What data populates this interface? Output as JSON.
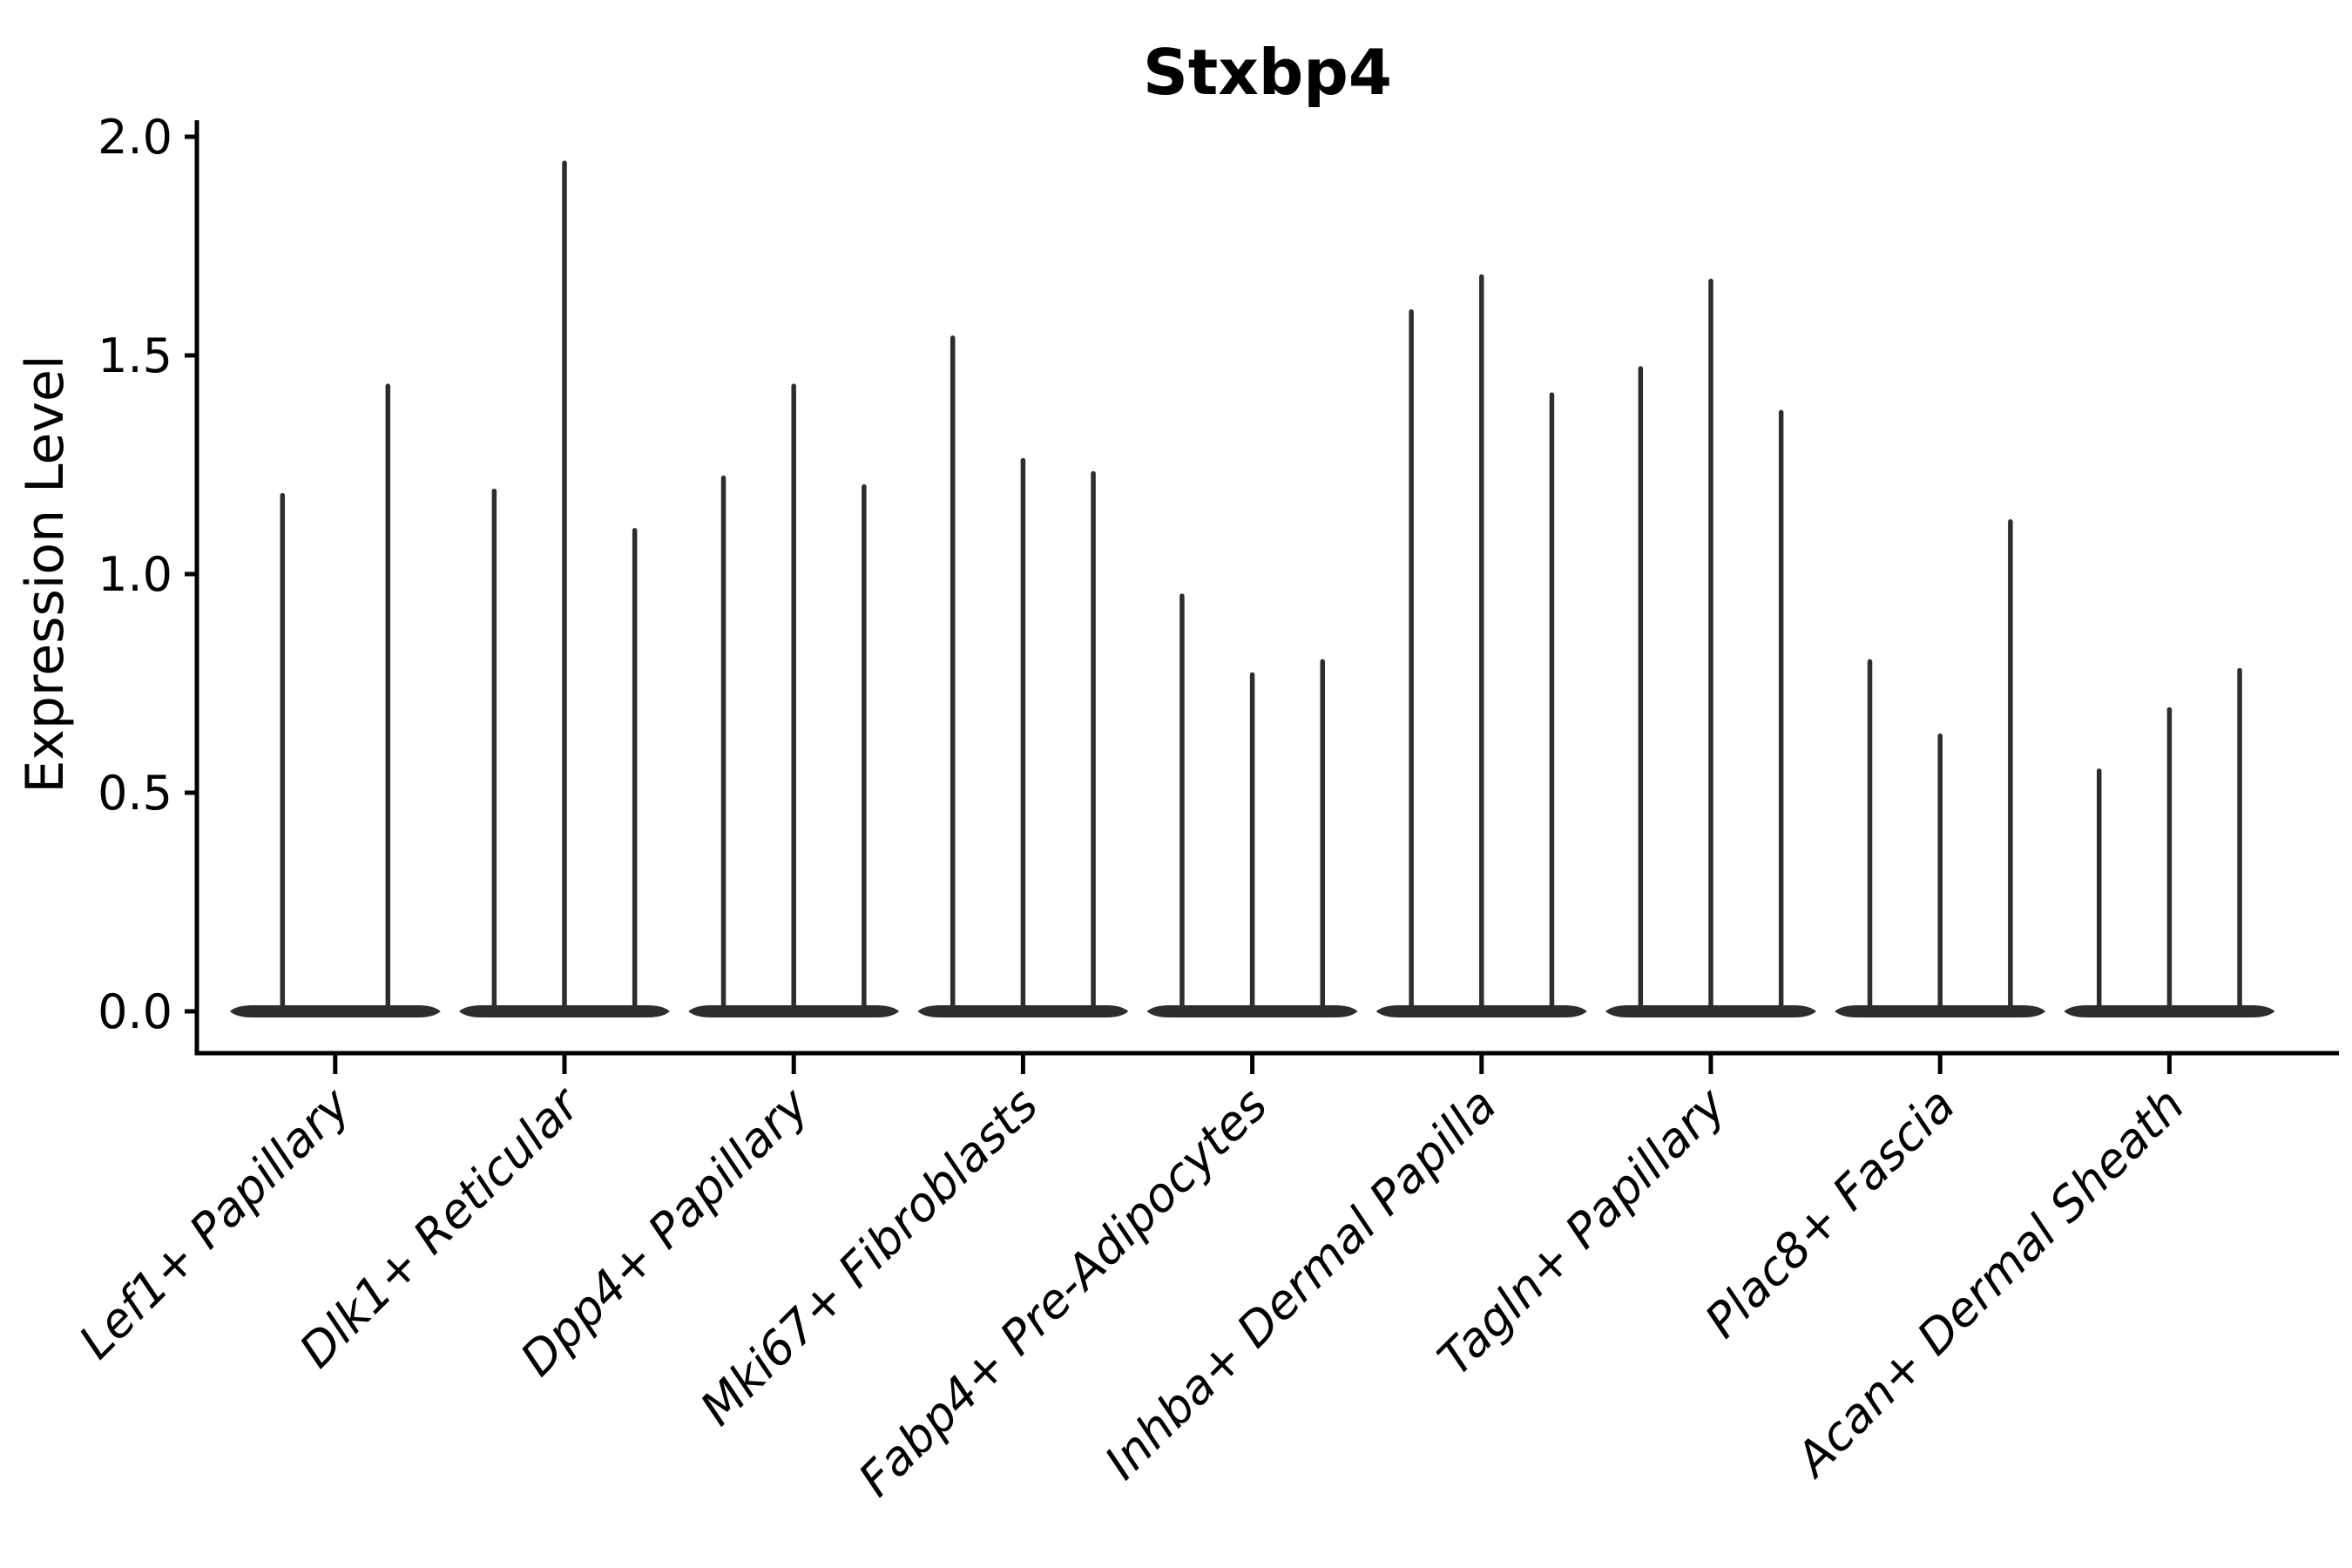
{
  "title": "Stxbp4",
  "y_axis": {
    "label": "Expression Level",
    "tick_labels": [
      "0.0",
      "0.5",
      "1.0",
      "1.5",
      "2.0"
    ],
    "tick_values": [
      0.0,
      0.5,
      1.0,
      1.5,
      2.0
    ],
    "range": [
      0.0,
      2.0
    ]
  },
  "x_axis": {
    "categories": [
      "Lef1+ Papillary",
      "Dlk1+ Reticular",
      "Dpp4+ Papillary",
      "Mki67+ Fibroblasts",
      "Fabp4+ Pre-Adipocytes",
      "Inhba+ Dermal Papilla",
      "Tagln+ Papillary",
      "Plac8+ Fascia",
      "Acan+ Dermal Sheath"
    ],
    "label_rotation_degrees": 45
  },
  "colors": {
    "violin": "#2d2d2d",
    "axis": "#000000",
    "background": "#ffffff"
  },
  "chart_data": {
    "type": "violin",
    "title": "Stxbp4",
    "xlabel": "",
    "ylabel": "Expression Level",
    "ylim": [
      0.0,
      2.0
    ],
    "yticks": [
      0.0,
      0.5,
      1.0,
      1.5,
      2.0
    ],
    "grid": false,
    "legend": null,
    "note": "Needle-thin violins; nearly all density mass at 0 (wide flat base), thin spike to max expression",
    "categories": [
      "Lef1+ Papillary",
      "Dlk1+ Reticular",
      "Dpp4+ Papillary",
      "Mki67+ Fibroblasts",
      "Fabp4+ Pre-Adipocytes",
      "Inhba+ Dermal Papilla",
      "Tagln+ Papillary",
      "Plac8+ Fascia",
      "Acan+ Dermal Sheath"
    ],
    "series": [
      {
        "category": "Lef1+ Papillary",
        "violin_max_values": [
          1.18,
          1.43
        ]
      },
      {
        "category": "Dlk1+ Reticular",
        "violin_max_values": [
          1.19,
          1.94,
          1.1
        ]
      },
      {
        "category": "Dpp4+ Papillary",
        "violin_max_values": [
          1.22,
          1.43,
          1.2
        ]
      },
      {
        "category": "Mki67+ Fibroblasts",
        "violin_max_values": [
          1.54,
          1.26,
          1.23
        ]
      },
      {
        "category": "Fabp4+ Pre-Adipocytes",
        "violin_max_values": [
          0.95,
          0.77,
          0.8
        ]
      },
      {
        "category": "Inhba+ Dermal Papilla",
        "violin_max_values": [
          1.6,
          1.68,
          1.41
        ]
      },
      {
        "category": "Tagln+ Papillary",
        "violin_max_values": [
          1.47,
          1.67,
          1.37
        ]
      },
      {
        "category": "Plac8+ Fascia",
        "violin_max_values": [
          0.8,
          0.63,
          1.12
        ]
      },
      {
        "category": "Acan+ Dermal Sheath",
        "violin_max_values": [
          0.55,
          0.69,
          0.78
        ]
      }
    ]
  }
}
